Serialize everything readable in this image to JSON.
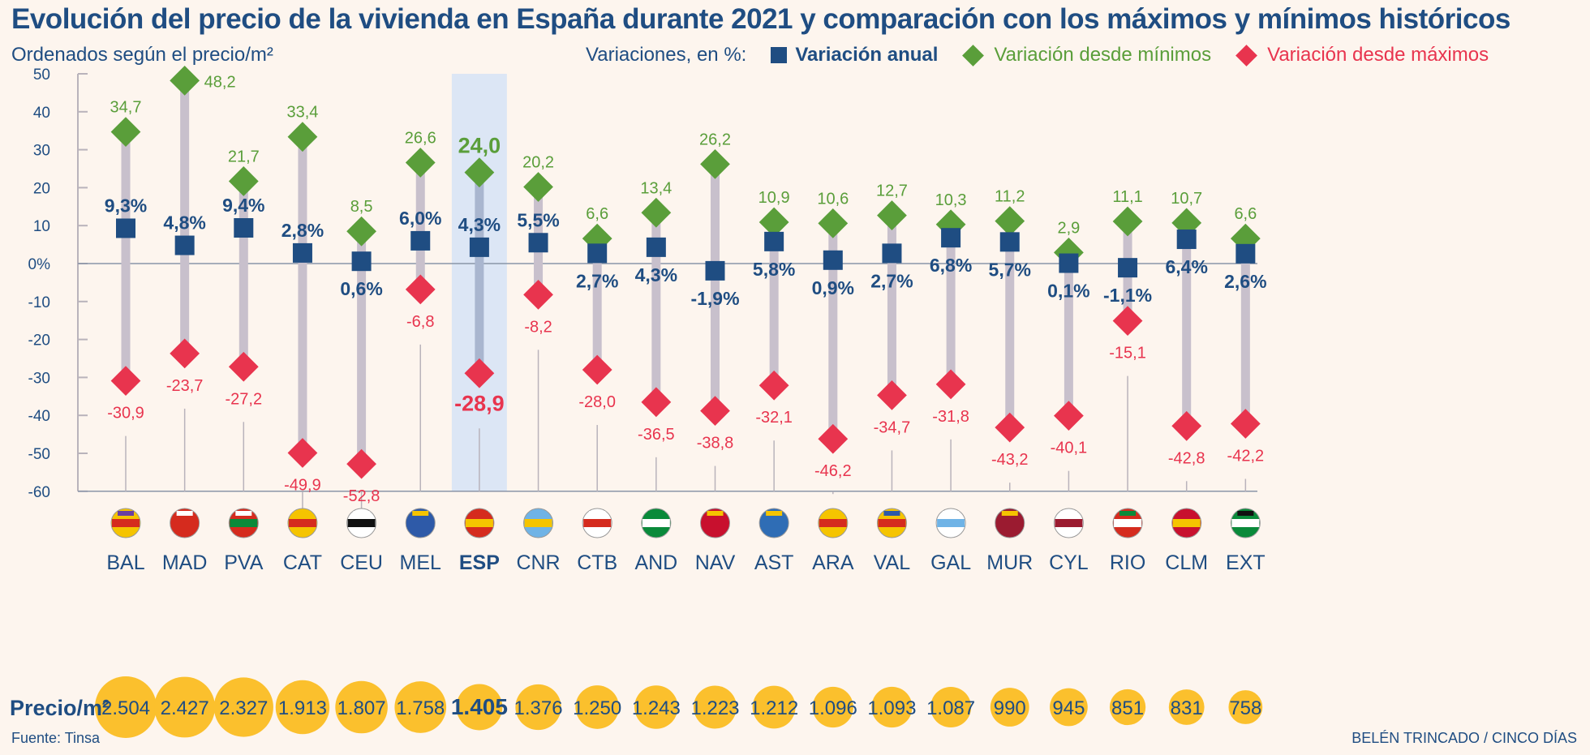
{
  "chart_data": {
    "type": "dot-range",
    "title": "Evolución del precio de la vivienda en España durante 2021 y comparación con los máximos y mínimos históricos",
    "subtitle": "Ordenados según el precio/m²",
    "legend_title": "Variaciones, en %:",
    "legend_placement": "top-right",
    "ylim": [
      -60,
      50
    ],
    "yticks": [
      "50",
      "40",
      "30",
      "20",
      "10",
      "0%",
      "-10",
      "-20",
      "-30",
      "-40",
      "-50",
      "-60"
    ],
    "ytick_values": [
      50,
      40,
      30,
      20,
      10,
      0,
      -10,
      -20,
      -30,
      -40,
      -50,
      -60
    ],
    "categories": [
      "BAL",
      "MAD",
      "PVA",
      "CAT",
      "CEU",
      "MEL",
      "ESP",
      "CNR",
      "CTB",
      "AND",
      "NAV",
      "AST",
      "ARA",
      "VAL",
      "GAL",
      "MUR",
      "CYL",
      "RIO",
      "CLM",
      "EXT"
    ],
    "highlight": "ESP",
    "series": [
      {
        "name": "Variación anual",
        "marker": "square",
        "color": "#1f4d82",
        "values": [
          9.3,
          4.8,
          9.4,
          2.8,
          0.6,
          6.0,
          4.3,
          5.5,
          2.7,
          4.3,
          -1.9,
          5.8,
          0.9,
          2.7,
          6.8,
          5.7,
          0.1,
          -1.1,
          6.4,
          2.6
        ],
        "labels": [
          "9,3%",
          "4,8%",
          "9,4%",
          "2,8%",
          "0,6%",
          "6,0%",
          "4,3%",
          "5,5%",
          "2,7%",
          "4,3%",
          "-1,9%",
          "5,8%",
          "0,9%",
          "2,7%",
          "6,8%",
          "5,7%",
          "0,1%",
          "-1,1%",
          "6,4%",
          "2,6%"
        ]
      },
      {
        "name": "Variación desde mínimos",
        "marker": "diamond",
        "color": "#5a9e3a",
        "values": [
          34.7,
          48.2,
          21.7,
          33.4,
          8.5,
          26.6,
          24.0,
          20.2,
          6.6,
          13.4,
          26.2,
          10.9,
          10.6,
          12.7,
          10.3,
          11.2,
          2.9,
          11.1,
          10.7,
          6.6
        ],
        "labels": [
          "34,7",
          "48,2",
          "21,7",
          "33,4",
          "8,5",
          "26,6",
          "24,0",
          "20,2",
          "6,6",
          "13,4",
          "26,2",
          "10,9",
          "10,6",
          "12,7",
          "10,3",
          "11,2",
          "2,9",
          "11,1",
          "10,7",
          "6,6"
        ]
      },
      {
        "name": "Variación desde máximos",
        "marker": "diamond",
        "color": "#e8344e",
        "values": [
          -30.9,
          -23.7,
          -27.2,
          -49.9,
          -52.8,
          -6.8,
          -28.9,
          -8.2,
          -28.0,
          -36.5,
          -38.8,
          -32.1,
          -46.2,
          -34.7,
          -31.8,
          -43.2,
          -40.1,
          -15.1,
          -42.8,
          -42.2
        ],
        "labels": [
          "-30,9",
          "-23,7",
          "-27,2",
          "-49,9",
          "-52,8",
          "-6,8",
          "-28,9",
          "-8,2",
          "-28,0",
          "-36,5",
          "-38,8",
          "-32,1",
          "-46,2",
          "-34,7",
          "-31,8",
          "-43,2",
          "-40,1",
          "-15,1",
          "-42,8",
          "-42,2"
        ]
      }
    ],
    "price_label": "Precio/m²",
    "prices": [
      2504,
      2427,
      2327,
      1913,
      1807,
      1758,
      1405,
      1376,
      1250,
      1243,
      1223,
      1212,
      1096,
      1093,
      1087,
      990,
      945,
      851,
      831,
      758
    ],
    "price_labels": [
      "2.504",
      "2.427",
      "2.327",
      "1.913",
      "1.807",
      "1.758",
      "1.405",
      "1.376",
      "1.250",
      "1.243",
      "1.223",
      "1.212",
      "1.096",
      "1.093",
      "1.087",
      "990",
      "945",
      "851",
      "831",
      "758"
    ],
    "colors": {
      "title": "#1f4d82",
      "range_bar": "#c8c0cc",
      "highlight_band": "#dce6f5",
      "price_circle": "#fbc02d"
    }
  },
  "source": "Fuente: Tinsa",
  "credit": "BELÉN TRINCADO / CINCO DÍAS"
}
